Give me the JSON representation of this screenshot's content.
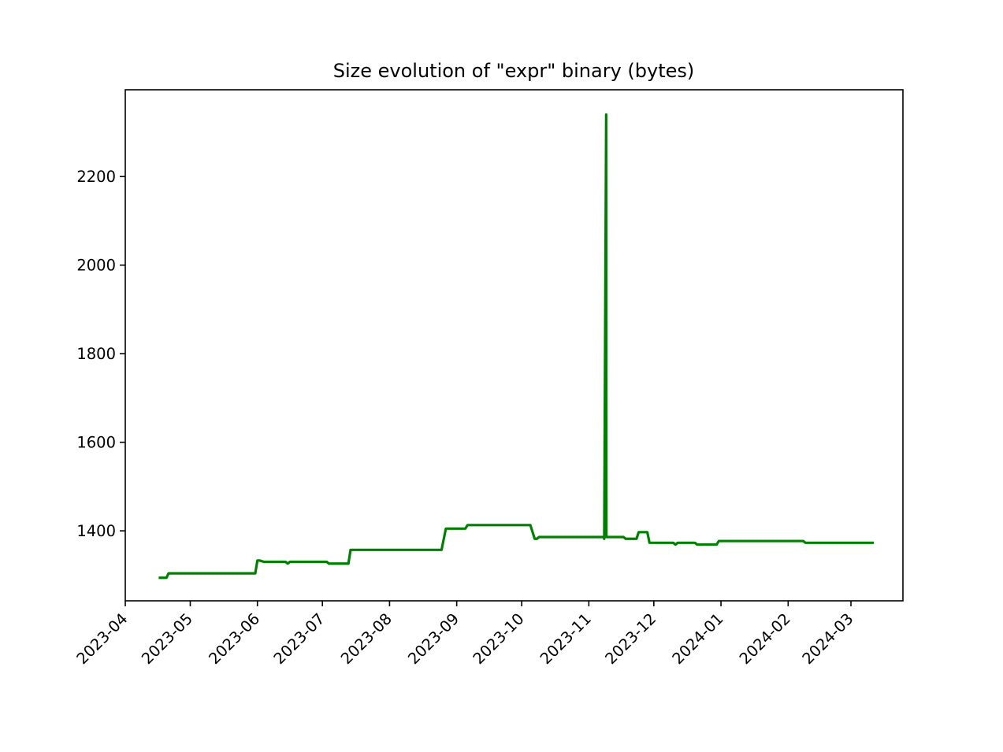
{
  "chart_data": {
    "type": "line",
    "title": "Size evolution of \"expr\" binary (bytes)",
    "xlabel": "",
    "ylabel": "",
    "x_axis": {
      "type": "date",
      "range": [
        "2023-04-01",
        "2024-03-25"
      ],
      "ticks": [
        "2023-04-01",
        "2023-05-01",
        "2023-06-01",
        "2023-07-01",
        "2023-08-01",
        "2023-09-01",
        "2023-10-01",
        "2023-11-01",
        "2023-12-01",
        "2024-01-01",
        "2024-02-01",
        "2024-03-01"
      ],
      "tick_labels": [
        "2023-04",
        "2023-05",
        "2023-06",
        "2023-07",
        "2023-08",
        "2023-09",
        "2023-10",
        "2023-11",
        "2023-12",
        "2024-01",
        "2024-02",
        "2024-03"
      ]
    },
    "y_axis": {
      "range": [
        1242,
        2396
      ],
      "ticks": [
        1400,
        1600,
        1800,
        2000,
        2200
      ],
      "tick_labels": [
        "1400",
        "1600",
        "1800",
        "2000",
        "2200"
      ]
    },
    "grid": false,
    "legend": "none",
    "series": [
      {
        "color": "#008000",
        "points": [
          [
            "2023-04-17",
            1294
          ],
          [
            "2023-04-20",
            1294
          ],
          [
            "2023-04-21",
            1304
          ],
          [
            "2023-05-31",
            1304
          ],
          [
            "2023-06-01",
            1333
          ],
          [
            "2023-06-02",
            1333
          ],
          [
            "2023-06-04",
            1330
          ],
          [
            "2023-06-14",
            1330
          ],
          [
            "2023-06-15",
            1326
          ],
          [
            "2023-06-16",
            1330
          ],
          [
            "2023-07-03",
            1330
          ],
          [
            "2023-07-04",
            1326
          ],
          [
            "2023-07-13",
            1326
          ],
          [
            "2023-07-14",
            1357
          ],
          [
            "2023-08-25",
            1357
          ],
          [
            "2023-08-27",
            1405
          ],
          [
            "2023-09-05",
            1405
          ],
          [
            "2023-09-06",
            1413
          ],
          [
            "2023-10-05",
            1413
          ],
          [
            "2023-10-07",
            1382
          ],
          [
            "2023-10-08",
            1382
          ],
          [
            "2023-10-09",
            1386
          ],
          [
            "2023-11-08",
            1386
          ],
          [
            "2023-11-08",
            1382
          ],
          [
            "2023-11-09",
            2340
          ],
          [
            "2023-11-09",
            1386
          ],
          [
            "2023-11-17",
            1386
          ],
          [
            "2023-11-18",
            1382
          ],
          [
            "2023-11-23",
            1382
          ],
          [
            "2023-11-24",
            1397
          ],
          [
            "2023-11-28",
            1397
          ],
          [
            "2023-11-29",
            1373
          ],
          [
            "2023-12-10",
            1373
          ],
          [
            "2023-12-11",
            1369
          ],
          [
            "2023-12-12",
            1373
          ],
          [
            "2023-12-20",
            1373
          ],
          [
            "2023-12-21",
            1369
          ],
          [
            "2023-12-30",
            1369
          ],
          [
            "2023-12-31",
            1377
          ],
          [
            "2024-02-08",
            1377
          ],
          [
            "2024-02-09",
            1373
          ],
          [
            "2024-03-11",
            1373
          ]
        ]
      }
    ]
  }
}
